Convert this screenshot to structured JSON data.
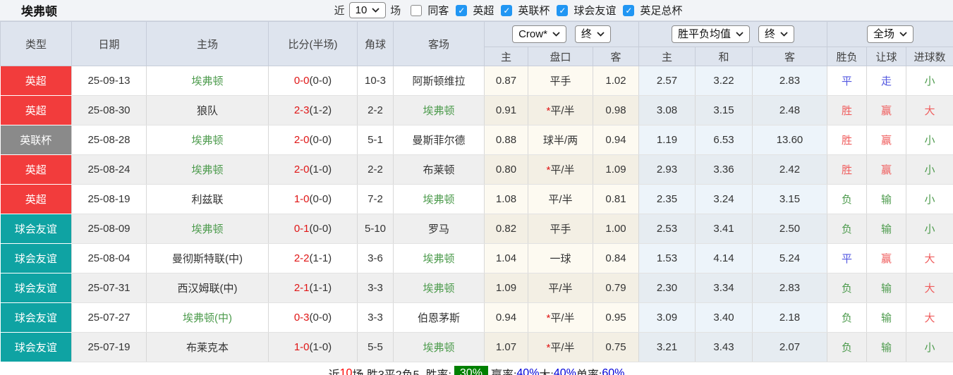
{
  "header": {
    "title": "埃弗顿",
    "recent_label": "近",
    "recent_value": "10",
    "games_label": "场",
    "same_away_label": "同客",
    "filters": [
      {
        "label": "英超",
        "checked": true
      },
      {
        "label": "英联杯",
        "checked": true
      },
      {
        "label": "球会友谊",
        "checked": true
      },
      {
        "label": "英足总杯",
        "checked": true
      }
    ]
  },
  "table": {
    "columns": [
      "类型",
      "日期",
      "主场",
      "比分(半场)",
      "角球",
      "客场"
    ],
    "asia_company_select": "Crow*",
    "asia_time_select": "终",
    "euro_company_select": "胜平负均值",
    "euro_time_select": "终",
    "scope_select": "全场",
    "sub_columns": [
      "主",
      "盘口",
      "客",
      "主",
      "和",
      "客",
      "胜负",
      "让球",
      "进球数"
    ],
    "league_colors": {
      "英超": "#f23c3c",
      "英联杯": "#8a8a8a",
      "球会友谊": "#0fa3a3"
    },
    "rows": [
      {
        "league": "英超",
        "league_color": "#f23c3c",
        "date": "25-09-13",
        "home": "埃弗顿",
        "home_green": true,
        "score": "0-0",
        "half": "(0-0)",
        "corner": "10-3",
        "away": "阿斯顿维拉",
        "away_green": false,
        "asia_home": "0.87",
        "pan_star": "",
        "pan": "平手",
        "asia_away": "1.02",
        "euro_home": "2.57",
        "euro_draw": "3.22",
        "euro_away": "2.83",
        "wdl": "平",
        "wdl_c": "blue",
        "hcp": "走",
        "hcp_c": "blue",
        "goals": "小",
        "goals_c": "green"
      },
      {
        "league": "英超",
        "league_color": "#f23c3c",
        "date": "25-08-30",
        "home": "狼队",
        "home_green": false,
        "score": "2-3",
        "half": "(1-2)",
        "corner": "2-2",
        "away": "埃弗顿",
        "away_green": true,
        "asia_home": "0.91",
        "pan_star": "*",
        "pan": "平/半",
        "asia_away": "0.98",
        "euro_home": "3.08",
        "euro_draw": "3.15",
        "euro_away": "2.48",
        "wdl": "胜",
        "wdl_c": "red",
        "hcp": "赢",
        "hcp_c": "red",
        "goals": "大",
        "goals_c": "red"
      },
      {
        "league": "英联杯",
        "league_color": "#8a8a8a",
        "date": "25-08-28",
        "home": "埃弗顿",
        "home_green": true,
        "score": "2-0",
        "half": "(0-0)",
        "corner": "5-1",
        "away": "曼斯菲尔德",
        "away_green": false,
        "asia_home": "0.88",
        "pan_star": "",
        "pan": "球半/两",
        "asia_away": "0.94",
        "euro_home": "1.19",
        "euro_draw": "6.53",
        "euro_away": "13.60",
        "wdl": "胜",
        "wdl_c": "red",
        "hcp": "赢",
        "hcp_c": "red",
        "goals": "小",
        "goals_c": "green"
      },
      {
        "league": "英超",
        "league_color": "#f23c3c",
        "date": "25-08-24",
        "home": "埃弗顿",
        "home_green": true,
        "score": "2-0",
        "half": "(1-0)",
        "corner": "2-2",
        "away": "布莱顿",
        "away_green": false,
        "asia_home": "0.80",
        "pan_star": "*",
        "pan": "平/半",
        "asia_away": "1.09",
        "euro_home": "2.93",
        "euro_draw": "3.36",
        "euro_away": "2.42",
        "wdl": "胜",
        "wdl_c": "red",
        "hcp": "赢",
        "hcp_c": "red",
        "goals": "小",
        "goals_c": "green"
      },
      {
        "league": "英超",
        "league_color": "#f23c3c",
        "date": "25-08-19",
        "home": "利兹联",
        "home_green": false,
        "score": "1-0",
        "half": "(0-0)",
        "corner": "7-2",
        "away": "埃弗顿",
        "away_green": true,
        "asia_home": "1.08",
        "pan_star": "",
        "pan": "平/半",
        "asia_away": "0.81",
        "euro_home": "2.35",
        "euro_draw": "3.24",
        "euro_away": "3.15",
        "wdl": "负",
        "wdl_c": "green",
        "hcp": "输",
        "hcp_c": "green",
        "goals": "小",
        "goals_c": "green"
      },
      {
        "league": "球会友谊",
        "league_color": "#0fa3a3",
        "date": "25-08-09",
        "home": "埃弗顿",
        "home_green": true,
        "score": "0-1",
        "half": "(0-0)",
        "corner": "5-10",
        "away": "罗马",
        "away_green": false,
        "asia_home": "0.82",
        "pan_star": "",
        "pan": "平手",
        "asia_away": "1.00",
        "euro_home": "2.53",
        "euro_draw": "3.41",
        "euro_away": "2.50",
        "wdl": "负",
        "wdl_c": "green",
        "hcp": "输",
        "hcp_c": "green",
        "goals": "小",
        "goals_c": "green"
      },
      {
        "league": "球会友谊",
        "league_color": "#0fa3a3",
        "date": "25-08-04",
        "home": "曼彻斯特联(中)",
        "home_green": false,
        "score": "2-2",
        "half": "(1-1)",
        "corner": "3-6",
        "away": "埃弗顿",
        "away_green": true,
        "asia_home": "1.04",
        "pan_star": "",
        "pan": "一球",
        "asia_away": "0.84",
        "euro_home": "1.53",
        "euro_draw": "4.14",
        "euro_away": "5.24",
        "wdl": "平",
        "wdl_c": "blue",
        "hcp": "赢",
        "hcp_c": "red",
        "goals": "大",
        "goals_c": "red"
      },
      {
        "league": "球会友谊",
        "league_color": "#0fa3a3",
        "date": "25-07-31",
        "home": "西汉姆联(中)",
        "home_green": false,
        "score": "2-1",
        "half": "(1-1)",
        "corner": "3-3",
        "away": "埃弗顿",
        "away_green": true,
        "asia_home": "1.09",
        "pan_star": "",
        "pan": "平/半",
        "asia_away": "0.79",
        "euro_home": "2.30",
        "euro_draw": "3.34",
        "euro_away": "2.83",
        "wdl": "负",
        "wdl_c": "green",
        "hcp": "输",
        "hcp_c": "green",
        "goals": "大",
        "goals_c": "red"
      },
      {
        "league": "球会友谊",
        "league_color": "#0fa3a3",
        "date": "25-07-27",
        "home": "埃弗顿(中)",
        "home_green": true,
        "score": "0-3",
        "half": "(0-0)",
        "corner": "3-3",
        "away": "伯恩茅斯",
        "away_green": false,
        "asia_home": "0.94",
        "pan_star": "*",
        "pan": "平/半",
        "asia_away": "0.95",
        "euro_home": "3.09",
        "euro_draw": "3.40",
        "euro_away": "2.18",
        "wdl": "负",
        "wdl_c": "green",
        "hcp": "输",
        "hcp_c": "green",
        "goals": "大",
        "goals_c": "red"
      },
      {
        "league": "球会友谊",
        "league_color": "#0fa3a3",
        "date": "25-07-19",
        "home": "布莱克本",
        "home_green": false,
        "score": "1-0",
        "half": "(1-0)",
        "corner": "5-5",
        "away": "埃弗顿",
        "away_green": true,
        "asia_home": "1.07",
        "pan_star": "*",
        "pan": "平/半",
        "asia_away": "0.75",
        "euro_home": "3.21",
        "euro_draw": "3.43",
        "euro_away": "2.07",
        "wdl": "负",
        "wdl_c": "green",
        "hcp": "输",
        "hcp_c": "green",
        "goals": "小",
        "goals_c": "green"
      }
    ]
  },
  "summary": {
    "parts": [
      {
        "t": "近",
        "c": "k"
      },
      {
        "t": "10",
        "c": "r"
      },
      {
        "t": "场,胜3平2负5, 胜率:",
        "c": "k"
      },
      {
        "t": "30%",
        "c": "badge"
      },
      {
        "t": " 赢率:",
        "c": "k"
      },
      {
        "t": "40%",
        "c": "b"
      },
      {
        "t": " 大:",
        "c": "k"
      },
      {
        "t": "40%",
        "c": "b"
      },
      {
        "t": " 单率:",
        "c": "k"
      },
      {
        "t": "60%",
        "c": "b"
      }
    ]
  },
  "colors": {
    "accent_red": "#f23c3c",
    "accent_gray": "#8a8a8a",
    "accent_teal": "#0fa3a3",
    "team_green": "#4d9b4d",
    "score_red": "#e01515",
    "result_red": "#ef5d5d",
    "result_green": "#4d9b4d",
    "result_blue": "#5257e0",
    "checkbox_blue": "#2196f3",
    "winrate_badge_green": "#008000",
    "header_bg": "#dee4ee"
  }
}
